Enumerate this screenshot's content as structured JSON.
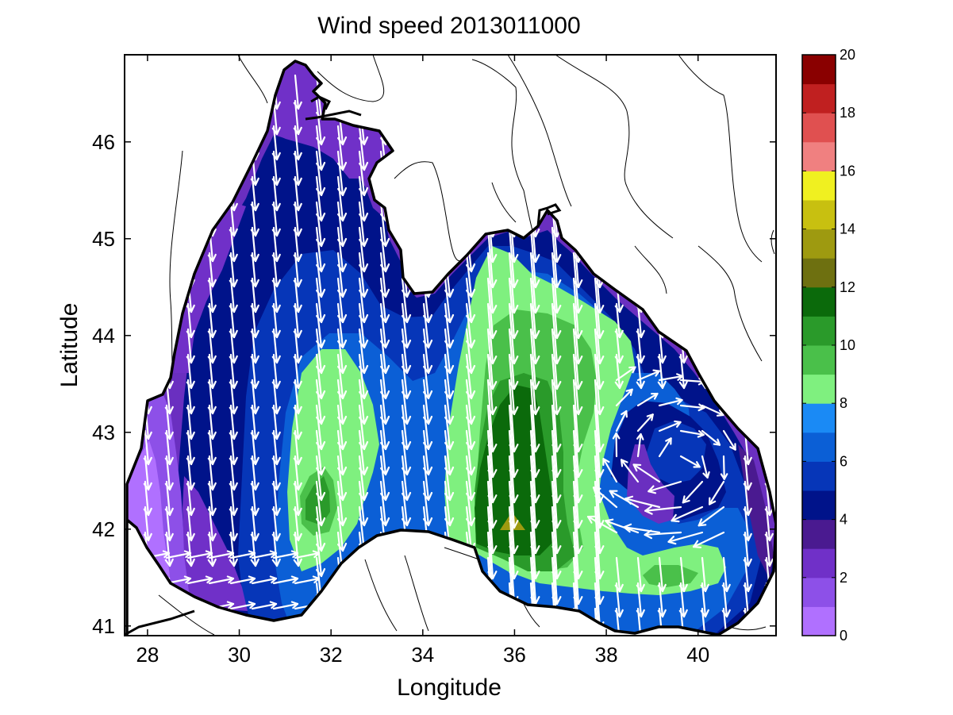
{
  "chart_data": {
    "type": "map",
    "title": "Wind speed 2013011000",
    "xlabel": "Longitude",
    "ylabel": "Latitude",
    "xlim": [
      27.5,
      41.7
    ],
    "ylim": [
      40.9,
      46.9
    ],
    "xticks": [
      "28",
      "30",
      "32",
      "34",
      "36",
      "38",
      "40"
    ],
    "yticks": [
      "41",
      "42",
      "43",
      "44",
      "45",
      "46"
    ],
    "colorbar": {
      "min": 0,
      "max": 20,
      "ticks": [
        "0",
        "2",
        "4",
        "6",
        "8",
        "10",
        "12",
        "14",
        "16",
        "18",
        "20"
      ],
      "bands": [
        {
          "from": 0,
          "to": 1,
          "color": "#b070ff"
        },
        {
          "from": 1,
          "to": 2,
          "color": "#8d50e8"
        },
        {
          "from": 2,
          "to": 3,
          "color": "#7030c8"
        },
        {
          "from": 3,
          "to": 4,
          "color": "#4a1a90"
        },
        {
          "from": 4,
          "to": 5,
          "color": "#00138a"
        },
        {
          "from": 5,
          "to": 6,
          "color": "#0636b8"
        },
        {
          "from": 6,
          "to": 7,
          "color": "#0b5fd6"
        },
        {
          "from": 7,
          "to": 8,
          "color": "#1a8af5"
        },
        {
          "from": 8,
          "to": 9,
          "color": "#7ff07f"
        },
        {
          "from": 9,
          "to": 10,
          "color": "#4ac04a"
        },
        {
          "from": 10,
          "to": 11,
          "color": "#2a9a2a"
        },
        {
          "from": 11,
          "to": 12,
          "color": "#0b6a0b"
        },
        {
          "from": 12,
          "to": 13,
          "color": "#6e7010"
        },
        {
          "from": 13,
          "to": 14,
          "color": "#9e9a10"
        },
        {
          "from": 14,
          "to": 15,
          "color": "#c8c010"
        },
        {
          "from": 15,
          "to": 16,
          "color": "#f0f020"
        },
        {
          "from": 16,
          "to": 17,
          "color": "#f08080"
        },
        {
          "from": 17,
          "to": 18,
          "color": "#e05050"
        },
        {
          "from": 18,
          "to": 19,
          "color": "#c02020"
        },
        {
          "from": 19,
          "to": 20,
          "color": "#8a0000"
        }
      ]
    },
    "region": "Black Sea",
    "wind_speed_zones": [
      {
        "range": "8-10",
        "center": [
          31.9,
          42.9
        ]
      },
      {
        "range": "10-11",
        "center": [
          31.8,
          42.2
        ]
      },
      {
        "range": "8-10",
        "center": [
          36.5,
          43.8
        ]
      },
      {
        "range": "10-11",
        "center": [
          36.7,
          43.2
        ]
      },
      {
        "range": "11-12",
        "center": [
          36.2,
          42.6
        ]
      },
      {
        "range": "12-14",
        "center": [
          36.1,
          42.1
        ]
      },
      {
        "range": "8-9",
        "center": [
          39.8,
          41.55
        ]
      },
      {
        "range": "0-2",
        "center": [
          28.6,
          42.0
        ]
      },
      {
        "range": "2-3",
        "center": [
          30.1,
          45.9
        ]
      }
    ]
  }
}
